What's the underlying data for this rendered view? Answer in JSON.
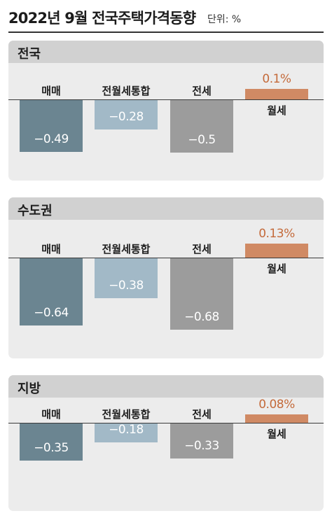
{
  "header": {
    "title": "2022년 9월 전국주택가격동향",
    "unit": "단위: %"
  },
  "colors": {
    "매매": "#6b8591",
    "전월세통합": "#a2b9c7",
    "전세": "#9c9c9c",
    "월세": "#d08a64",
    "positive_label": "#c46a3a"
  },
  "chart_data": [
    {
      "type": "bar",
      "title": "전국",
      "categories": [
        "매매",
        "전월세통합",
        "전세",
        "월세"
      ],
      "values": [
        -0.49,
        -0.28,
        -0.5,
        0.1
      ],
      "labels": [
        "−0.49",
        "−0.28",
        "−0.5",
        "0.1%"
      ]
    },
    {
      "type": "bar",
      "title": "수도권",
      "categories": [
        "매매",
        "전월세통합",
        "전세",
        "월세"
      ],
      "values": [
        -0.64,
        -0.38,
        -0.68,
        0.13
      ],
      "labels": [
        "−0.64",
        "−0.38",
        "−0.68",
        "0.13%"
      ]
    },
    {
      "type": "bar",
      "title": "지방",
      "categories": [
        "매매",
        "전월세통합",
        "전세",
        "월세"
      ],
      "values": [
        -0.35,
        -0.18,
        -0.33,
        0.08
      ],
      "labels": [
        "−0.35",
        "−0.18",
        "−0.33",
        "0.08%"
      ]
    }
  ]
}
